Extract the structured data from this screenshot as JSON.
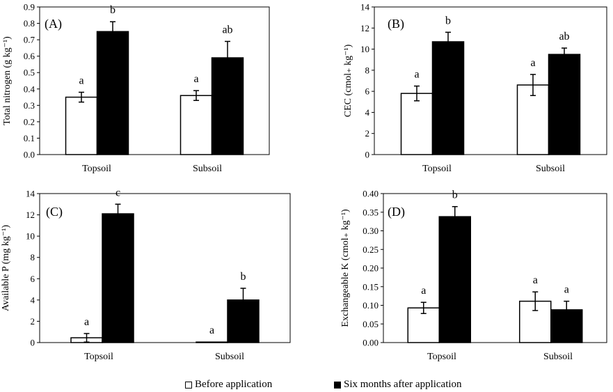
{
  "legend": {
    "before_label": "Before application",
    "after_label": "Six months after application",
    "before_color": "#ffffff",
    "after_color": "#000000"
  },
  "chart_data": [
    {
      "type": "bar",
      "panel_label": "(A)",
      "ylabel": "Total nitrogen (g kg⁻¹)",
      "ylim": [
        0,
        0.9
      ],
      "yticks": [
        0,
        0.1,
        0.2,
        0.3,
        0.4,
        0.5,
        0.6,
        0.7,
        0.8,
        0.9
      ],
      "ytick_labels": [
        "0.0",
        "0.1",
        "0.2",
        "0.3",
        "0.4",
        "0.5",
        "0.6",
        "0.7",
        "0.8",
        "0.9"
      ],
      "categories": [
        "Topsoil",
        "Subsoil"
      ],
      "series": [
        {
          "name": "Before application",
          "values": [
            0.35,
            0.36
          ],
          "errors": [
            0.03,
            0.03
          ],
          "letters": [
            "a",
            "a"
          ]
        },
        {
          "name": "Six months after application",
          "values": [
            0.75,
            0.59
          ],
          "errors": [
            0.06,
            0.1
          ],
          "letters": [
            "b",
            "ab"
          ]
        }
      ]
    },
    {
      "type": "bar",
      "panel_label": "(B)",
      "ylabel": "CEC (cmol₊ kg⁻¹)",
      "ylim": [
        0,
        14
      ],
      "yticks": [
        0,
        2,
        4,
        6,
        8,
        10,
        12,
        14
      ],
      "ytick_labels": [
        "0",
        "2",
        "4",
        "6",
        "8",
        "10",
        "12",
        "14"
      ],
      "categories": [
        "Topsoil",
        "Subsoil"
      ],
      "series": [
        {
          "name": "Before application",
          "values": [
            5.8,
            6.6
          ],
          "errors": [
            0.7,
            1.0
          ],
          "letters": [
            "a",
            "a"
          ]
        },
        {
          "name": "Six months after application",
          "values": [
            10.7,
            9.5
          ],
          "errors": [
            0.9,
            0.6
          ],
          "letters": [
            "b",
            "ab"
          ]
        }
      ]
    },
    {
      "type": "bar",
      "panel_label": "(C)",
      "ylabel": "Available P (mg kg⁻¹)",
      "ylim": [
        0,
        14
      ],
      "yticks": [
        0,
        2,
        4,
        6,
        8,
        10,
        12,
        14
      ],
      "ytick_labels": [
        "0",
        "2",
        "4",
        "6",
        "8",
        "10",
        "12",
        "14"
      ],
      "categories": [
        "Topsoil",
        "Subsoil"
      ],
      "series": [
        {
          "name": "Before application",
          "values": [
            0.45,
            0.05
          ],
          "errors": [
            0.4,
            0.0
          ],
          "letters": [
            "a",
            "a"
          ]
        },
        {
          "name": "Six months after application",
          "values": [
            12.1,
            4.0
          ],
          "errors": [
            0.9,
            1.1
          ],
          "letters": [
            "c",
            "b"
          ]
        }
      ]
    },
    {
      "type": "bar",
      "panel_label": "(D)",
      "ylabel": "Exchangeable K (cmol₊ kg⁻¹)",
      "ylim": [
        0,
        0.4
      ],
      "yticks": [
        0,
        0.05,
        0.1,
        0.15,
        0.2,
        0.25,
        0.3,
        0.35,
        0.4
      ],
      "ytick_labels": [
        "0.00",
        "0.05",
        "0.10",
        "0.15",
        "0.20",
        "0.25",
        "0.30",
        "0.35",
        "0.40"
      ],
      "categories": [
        "Topsoil",
        "Subsoil"
      ],
      "series": [
        {
          "name": "Before application",
          "values": [
            0.093,
            0.111
          ],
          "errors": [
            0.015,
            0.025
          ],
          "letters": [
            "a",
            "a"
          ]
        },
        {
          "name": "Six months after application",
          "values": [
            0.338,
            0.088
          ],
          "errors": [
            0.027,
            0.023
          ],
          "letters": [
            "b",
            "a"
          ]
        }
      ]
    }
  ]
}
